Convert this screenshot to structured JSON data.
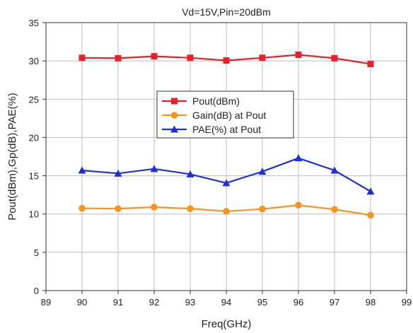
{
  "chart_data": {
    "type": "line",
    "title": "Vd=15V,Pin=20dBm",
    "xlabel": "Freq(GHz)",
    "ylabel": "Pout(dBm),Gp(dB),PAE(%)",
    "xlim": [
      89,
      99
    ],
    "ylim": [
      0,
      35
    ],
    "x_ticks": [
      89,
      90,
      91,
      92,
      93,
      94,
      95,
      96,
      97,
      98,
      99
    ],
    "y_ticks": [
      0,
      5,
      10,
      15,
      20,
      25,
      30,
      35
    ],
    "grid": true,
    "legend_position": "center",
    "x": [
      90,
      91,
      92,
      93,
      94,
      95,
      96,
      97,
      98
    ],
    "series": [
      {
        "name": "Pout(dBm)",
        "marker": "square",
        "color": "#e8202a",
        "values": [
          30.4,
          30.35,
          30.6,
          30.4,
          30.05,
          30.4,
          30.8,
          30.35,
          29.6
        ]
      },
      {
        "name": "Gain(dB) at Pout",
        "marker": "circle",
        "color": "#f7941d",
        "values": [
          10.75,
          10.7,
          10.9,
          10.7,
          10.35,
          10.65,
          11.15,
          10.6,
          9.85
        ]
      },
      {
        "name": "PAE(%) at Pout",
        "marker": "triangle",
        "color": "#1f2fd6",
        "values": [
          15.7,
          15.3,
          15.9,
          15.2,
          14.05,
          15.55,
          17.3,
          15.7,
          12.95
        ]
      }
    ]
  }
}
